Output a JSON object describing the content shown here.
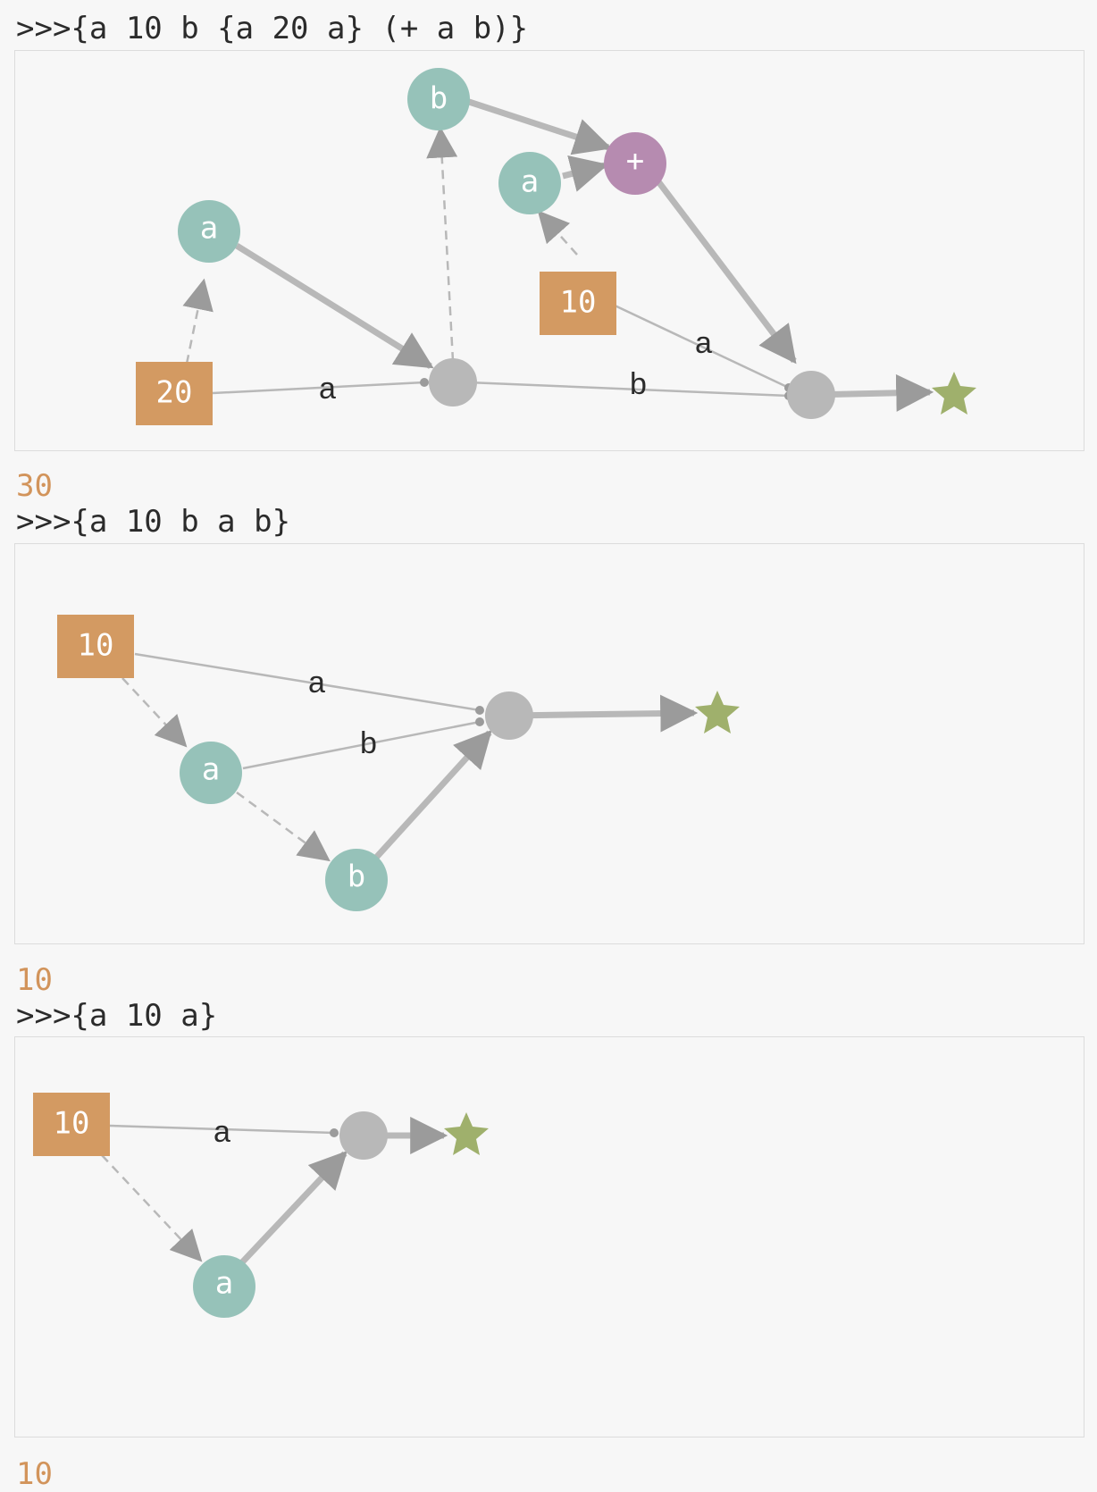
{
  "colors": {
    "variable": "#96c2b9",
    "literal": "#d39a62",
    "operator": "#b68bb0",
    "junction": "#b8b8b8",
    "output": "#9fb06c",
    "edge": "#b8b8b8",
    "arrowhead": "#9b9b9b",
    "result_text": "#d2945b"
  },
  "repl": [
    {
      "prompt": ">>>{a 10 b {a 20 a} (+ a b)}",
      "result": "30",
      "graph": {
        "nodes": [
          {
            "id": "b1",
            "kind": "variable",
            "label": "b",
            "icon": "variable-node"
          },
          {
            "id": "plus",
            "kind": "operator",
            "label": "+",
            "icon": "operator-node"
          },
          {
            "id": "a1",
            "kind": "variable",
            "label": "a",
            "icon": "variable-node"
          },
          {
            "id": "a2",
            "kind": "variable",
            "label": "a",
            "icon": "variable-node"
          },
          {
            "id": "lit10",
            "kind": "literal",
            "label": "10",
            "icon": "literal-node"
          },
          {
            "id": "lit20",
            "kind": "literal",
            "label": "20",
            "icon": "literal-node"
          },
          {
            "id": "j1",
            "kind": "junction",
            "label": "",
            "icon": "junction-node"
          },
          {
            "id": "j2",
            "kind": "junction",
            "label": "",
            "icon": "junction-node"
          },
          {
            "id": "out",
            "kind": "output",
            "label": "",
            "icon": "star-icon"
          }
        ],
        "edge_labels": [
          {
            "id": "e-20-j1",
            "text": "a"
          },
          {
            "id": "e-j1-j2",
            "text": "b"
          },
          {
            "id": "e-10-j2",
            "text": "a"
          }
        ]
      }
    },
    {
      "prompt": ">>>{a 10 b a b}",
      "result": "10",
      "graph": {
        "nodes": [
          {
            "id": "lit10",
            "kind": "literal",
            "label": "10",
            "icon": "literal-node"
          },
          {
            "id": "a",
            "kind": "variable",
            "label": "a",
            "icon": "variable-node"
          },
          {
            "id": "b",
            "kind": "variable",
            "label": "b",
            "icon": "variable-node"
          },
          {
            "id": "j",
            "kind": "junction",
            "label": "",
            "icon": "junction-node"
          },
          {
            "id": "out",
            "kind": "output",
            "label": "",
            "icon": "star-icon"
          }
        ],
        "edge_labels": [
          {
            "id": "e-10-j",
            "text": "a"
          },
          {
            "id": "e-a-j",
            "text": "b"
          }
        ]
      }
    },
    {
      "prompt": ">>>{a 10 a}",
      "result": "10",
      "graph": {
        "nodes": [
          {
            "id": "lit10",
            "kind": "literal",
            "label": "10",
            "icon": "literal-node"
          },
          {
            "id": "a",
            "kind": "variable",
            "label": "a",
            "icon": "variable-node"
          },
          {
            "id": "j",
            "kind": "junction",
            "label": "",
            "icon": "junction-node"
          },
          {
            "id": "out",
            "kind": "output",
            "label": "",
            "icon": "star-icon"
          }
        ],
        "edge_labels": [
          {
            "id": "e-10-j",
            "text": "a"
          }
        ]
      }
    }
  ]
}
